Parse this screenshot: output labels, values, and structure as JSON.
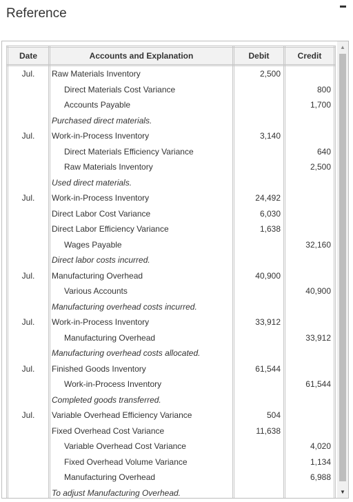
{
  "window": {
    "title": "Reference"
  },
  "table": {
    "headers": {
      "date": "Date",
      "account": "Accounts and Explanation",
      "debit": "Debit",
      "credit": "Credit"
    },
    "rows": [
      {
        "date": "Jul.",
        "account": "Raw Materials Inventory",
        "debit": "2,500",
        "credit": "",
        "kind": "debit"
      },
      {
        "date": "",
        "account": "Direct Materials Cost Variance",
        "debit": "",
        "credit": "800",
        "kind": "credit"
      },
      {
        "date": "",
        "account": "Accounts Payable",
        "debit": "",
        "credit": "1,700",
        "kind": "credit"
      },
      {
        "date": "",
        "account": "Purchased direct materials.",
        "debit": "",
        "credit": "",
        "kind": "expl"
      },
      {
        "date": "Jul.",
        "account": "Work-in-Process Inventory",
        "debit": "3,140",
        "credit": "",
        "kind": "debit"
      },
      {
        "date": "",
        "account": "Direct Materials Efficiency Variance",
        "debit": "",
        "credit": "640",
        "kind": "credit"
      },
      {
        "date": "",
        "account": "Raw Materials Inventory",
        "debit": "",
        "credit": "2,500",
        "kind": "credit"
      },
      {
        "date": "",
        "account": "Used direct materials.",
        "debit": "",
        "credit": "",
        "kind": "expl"
      },
      {
        "date": "Jul.",
        "account": "Work-in-Process Inventory",
        "debit": "24,492",
        "credit": "",
        "kind": "debit"
      },
      {
        "date": "",
        "account": "Direct Labor Cost Variance",
        "debit": "6,030",
        "credit": "",
        "kind": "debit"
      },
      {
        "date": "",
        "account": "Direct Labor Efficiency Variance",
        "debit": "1,638",
        "credit": "",
        "kind": "debit"
      },
      {
        "date": "",
        "account": "Wages Payable",
        "debit": "",
        "credit": "32,160",
        "kind": "credit"
      },
      {
        "date": "",
        "account": "Direct labor costs incurred.",
        "debit": "",
        "credit": "",
        "kind": "expl"
      },
      {
        "date": "Jul.",
        "account": "Manufacturing Overhead",
        "debit": "40,900",
        "credit": "",
        "kind": "debit"
      },
      {
        "date": "",
        "account": "Various Accounts",
        "debit": "",
        "credit": "40,900",
        "kind": "credit"
      },
      {
        "date": "",
        "account": "Manufacturing overhead costs incurred.",
        "debit": "",
        "credit": "",
        "kind": "expl"
      },
      {
        "date": "Jul.",
        "account": "Work-in-Process Inventory",
        "debit": "33,912",
        "credit": "",
        "kind": "debit"
      },
      {
        "date": "",
        "account": "Manufacturing Overhead",
        "debit": "",
        "credit": "33,912",
        "kind": "credit"
      },
      {
        "date": "",
        "account": "Manufacturing overhead costs allocated.",
        "debit": "",
        "credit": "",
        "kind": "expl"
      },
      {
        "date": "Jul.",
        "account": "Finished Goods Inventory",
        "debit": "61,544",
        "credit": "",
        "kind": "debit"
      },
      {
        "date": "",
        "account": "Work-in-Process Inventory",
        "debit": "",
        "credit": "61,544",
        "kind": "credit"
      },
      {
        "date": "",
        "account": "Completed goods transferred.",
        "debit": "",
        "credit": "",
        "kind": "expl"
      },
      {
        "date": "Jul.",
        "account": "Variable Overhead Efficiency Variance",
        "debit": "504",
        "credit": "",
        "kind": "debit"
      },
      {
        "date": "",
        "account": "Fixed Overhead Cost Variance",
        "debit": "11,638",
        "credit": "",
        "kind": "debit"
      },
      {
        "date": "",
        "account": "Variable Overhead Cost Variance",
        "debit": "",
        "credit": "4,020",
        "kind": "credit"
      },
      {
        "date": "",
        "account": "Fixed Overhead Volume Variance",
        "debit": "",
        "credit": "1,134",
        "kind": "credit"
      },
      {
        "date": "",
        "account": "Manufacturing Overhead",
        "debit": "",
        "credit": "6,988",
        "kind": "credit"
      },
      {
        "date": "",
        "account": "To adjust Manufacturing Overhead.",
        "debit": "",
        "credit": "",
        "kind": "expl"
      }
    ]
  },
  "icons": {
    "minimize": "minimize-icon",
    "scroll_up": "scroll-up-arrow-icon",
    "scroll_down": "scroll-down-arrow-icon"
  }
}
